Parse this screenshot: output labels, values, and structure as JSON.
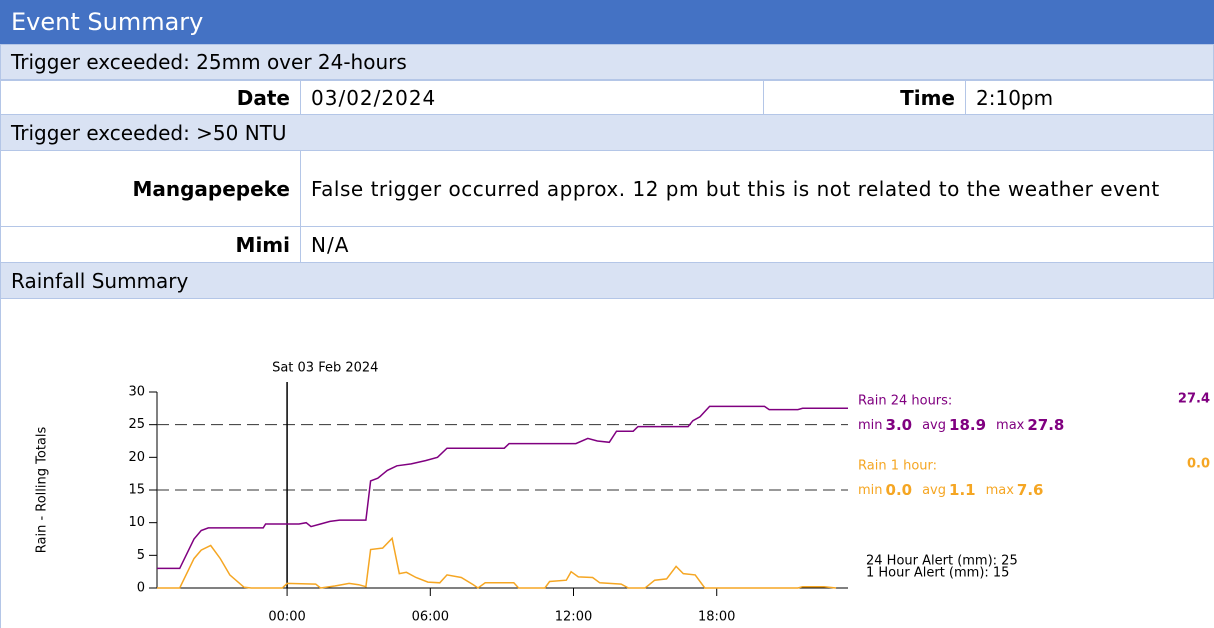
{
  "header": {
    "title": "Event Summary"
  },
  "trigger_rain": {
    "title": "Trigger exceeded: 25mm over 24-hours",
    "date_label": "Date",
    "date": "03/02/2024",
    "time_label": "Time",
    "time": "2:10pm"
  },
  "trigger_ntu": {
    "title": "Trigger exceeded: >50 NTU",
    "sites": [
      {
        "name": "Mangapepeke",
        "note": "False trigger occurred approx. 12 pm but this is not related to the weather event"
      },
      {
        "name": "Mimi",
        "note": "N/A"
      }
    ]
  },
  "rainfall": {
    "title": "Rainfall Summary"
  },
  "chart_data": {
    "type": "line",
    "y_label": "Rain - Rolling Totals",
    "xlim": [
      -5.45,
      23.5
    ],
    "xticks": [
      {
        "value": 0,
        "label": "00:00"
      },
      {
        "value": 6,
        "label": "06:00"
      },
      {
        "value": 12,
        "label": "12:00"
      },
      {
        "value": 18,
        "label": "18:00"
      }
    ],
    "ylim": [
      0,
      30
    ],
    "yticks": [
      0,
      5,
      10,
      15,
      20,
      25,
      30
    ],
    "day_marker": {
      "x": 0,
      "label": "Sat 03 Feb 2024"
    },
    "alerts": [
      {
        "value": 25,
        "label": "24 Hour Alert (mm): 25"
      },
      {
        "value": 15,
        "label": "1 Hour Alert (mm): 15"
      }
    ],
    "series": [
      {
        "name": "Rain 24 hours:",
        "color": "#800080",
        "current": "27.4",
        "stats": [
          {
            "name": "min",
            "value": "3.0"
          },
          {
            "name": "avg",
            "value": "18.9"
          },
          {
            "name": "max",
            "value": "27.8"
          }
        ],
        "x": [
          -5.45,
          -4.5,
          -3.9,
          -3.6,
          -3.3,
          -1.0,
          -0.9,
          0.5,
          0.8,
          1.0,
          1.4,
          1.8,
          2.2,
          3.3,
          3.5,
          3.8,
          4.2,
          4.6,
          5.2,
          5.8,
          6.3,
          6.7,
          9.1,
          9.3,
          12.1,
          12.6,
          13.0,
          13.5,
          13.8,
          14.5,
          14.7,
          16.8,
          17.0,
          17.3,
          17.7,
          20.0,
          20.2,
          21.4,
          21.6,
          23.5
        ],
        "values": [
          3.0,
          3.0,
          7.5,
          8.8,
          9.2,
          9.2,
          9.8,
          9.8,
          10.0,
          9.4,
          9.8,
          10.2,
          10.4,
          10.4,
          16.4,
          16.8,
          18.0,
          18.7,
          19.0,
          19.5,
          20.0,
          21.4,
          21.4,
          22.1,
          22.1,
          22.9,
          22.5,
          22.3,
          24.0,
          24.0,
          24.7,
          24.7,
          25.6,
          26.2,
          27.8,
          27.8,
          27.3,
          27.3,
          27.5,
          27.5
        ]
      },
      {
        "name": "Rain 1 hour:",
        "color": "#f5a623",
        "current": "0.0",
        "stats": [
          {
            "name": "min",
            "value": "0.0"
          },
          {
            "name": "avg",
            "value": "1.1"
          },
          {
            "name": "max",
            "value": "7.6"
          }
        ],
        "x": [
          -5.45,
          -4.5,
          -3.9,
          -3.6,
          -3.2,
          -2.8,
          -2.4,
          -1.8,
          -1.5,
          -0.2,
          0,
          1.2,
          1.4,
          2.0,
          2.6,
          3.0,
          3.3,
          3.5,
          4.0,
          4.4,
          4.7,
          5.0,
          5.4,
          5.9,
          6.4,
          6.7,
          7.3,
          7.8,
          8.0,
          8.3,
          9.5,
          9.7,
          10.8,
          11.0,
          11.7,
          11.9,
          12.2,
          12.8,
          13.1,
          14.0,
          14.3,
          15.0,
          15.4,
          15.9,
          16.3,
          16.6,
          17.1,
          17.5,
          21.4,
          21.6,
          22.5,
          23.0
        ],
        "values": [
          0,
          0,
          4.5,
          5.8,
          6.5,
          4.5,
          2.0,
          0.1,
          0,
          0,
          0.7,
          0.6,
          0,
          0.3,
          0.7,
          0.5,
          0.2,
          5.9,
          6.1,
          7.6,
          2.2,
          2.4,
          1.6,
          0.9,
          0.8,
          2.0,
          1.6,
          0.5,
          0,
          0.8,
          0.8,
          0,
          0,
          1.0,
          1.2,
          2.5,
          1.7,
          1.6,
          0.8,
          0.6,
          0,
          0,
          1.2,
          1.4,
          3.3,
          2.2,
          2.0,
          0,
          0,
          0.2,
          0.2,
          0
        ]
      }
    ]
  }
}
